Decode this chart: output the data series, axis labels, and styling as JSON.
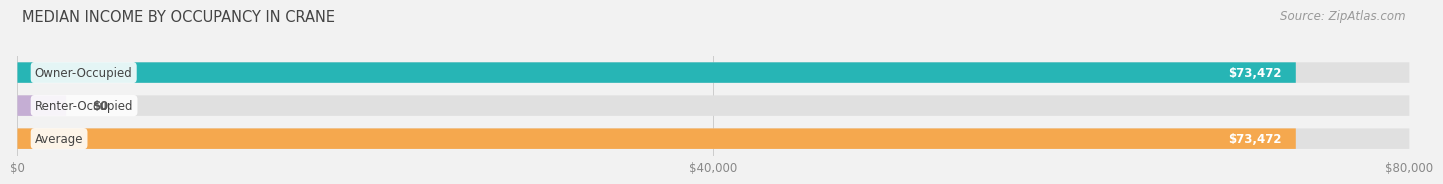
{
  "title": "MEDIAN INCOME BY OCCUPANCY IN CRANE",
  "source": "Source: ZipAtlas.com",
  "categories": [
    "Owner-Occupied",
    "Renter-Occupied",
    "Average"
  ],
  "values": [
    73472,
    0,
    73472
  ],
  "bar_colors": [
    "#27b5b5",
    "#c5aed4",
    "#f5a84e"
  ],
  "bar_labels": [
    "$73,472",
    "$0",
    "$73,472"
  ],
  "xlim": [
    0,
    80000
  ],
  "xticks": [
    0,
    40000,
    80000
  ],
  "xtick_labels": [
    "$0",
    "$40,000",
    "$80,000"
  ],
  "background_color": "#f2f2f2",
  "bar_bg_color": "#e0e0e0",
  "title_fontsize": 10.5,
  "source_fontsize": 8.5,
  "label_fontsize": 8.5,
  "value_fontsize": 8.5,
  "tick_fontsize": 8.5
}
